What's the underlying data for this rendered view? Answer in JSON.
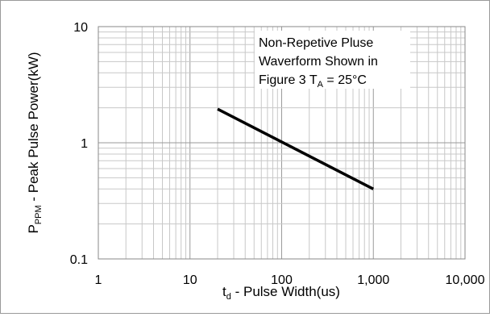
{
  "chart_data": {
    "type": "line",
    "xscale": "log",
    "yscale": "log",
    "xlim": [
      1,
      10000
    ],
    "ylim": [
      0.1,
      10
    ],
    "grid": true,
    "x_ticks": [
      "1",
      "10",
      "100",
      "1,000",
      "10,000"
    ],
    "y_ticks": [
      "10",
      "1",
      "0.1"
    ],
    "xlabel": {
      "main": "t",
      "sub": "d",
      "rest": " - Pulse Width(us)"
    },
    "ylabel": {
      "main": "P",
      "sub": "PPM",
      "rest": " - Peak Pulse Power(kW)"
    },
    "annotation": {
      "line1": "Non-Repetive Pluse",
      "line2": "Waverform Shown in",
      "line3_pre": "Figure 3 T",
      "line3_sub": "A",
      "line3_post": " = 25°C"
    },
    "series": [
      {
        "x": [
          20,
          1000
        ],
        "y": [
          1.95,
          0.4
        ],
        "color": "#000000"
      }
    ]
  }
}
